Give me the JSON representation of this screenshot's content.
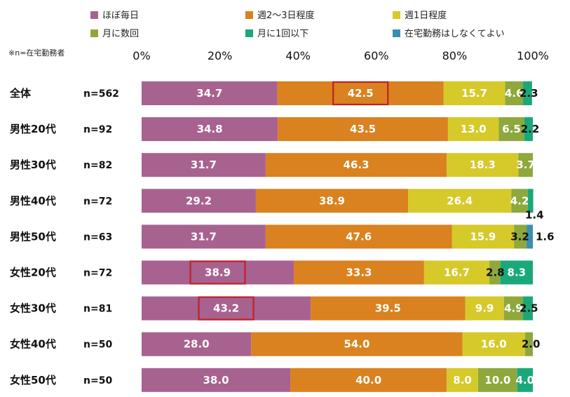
{
  "chart_data": {
    "type": "bar",
    "orientation": "horizontal",
    "stacked": true,
    "note": "※n=在宅勤務者",
    "x_ticks": [
      "0%",
      "20%",
      "40%",
      "60%",
      "80%",
      "100%"
    ],
    "xlim": [
      0,
      100
    ],
    "legend_position": "top",
    "categories": [
      "全体",
      "男性20代",
      "男性30代",
      "男性40代",
      "男性50代",
      "女性20代",
      "女性30代",
      "女性40代",
      "女性50代"
    ],
    "n_labels": [
      "n=562",
      "n=92",
      "n=82",
      "n=72",
      "n=63",
      "n=72",
      "n=81",
      "n=50",
      "n=50"
    ],
    "series": [
      {
        "name": "ほぼ毎日",
        "color": "#a8628f",
        "values": [
          34.7,
          34.8,
          31.7,
          29.2,
          31.7,
          38.9,
          43.2,
          28.0,
          38.0
        ]
      },
      {
        "name": "週2～3日程度",
        "color": "#d9821f",
        "values": [
          42.5,
          43.5,
          46.3,
          38.9,
          47.6,
          33.3,
          39.5,
          54.0,
          40.0
        ]
      },
      {
        "name": "週1日程度",
        "color": "#d6c92a",
        "values": [
          15.7,
          13.0,
          18.3,
          26.4,
          15.9,
          16.7,
          9.9,
          16.0,
          8.0
        ]
      },
      {
        "name": "月に数回",
        "color": "#8ea83c",
        "values": [
          4.6,
          6.5,
          3.7,
          4.2,
          3.2,
          2.8,
          4.9,
          2.0,
          10.0
        ]
      },
      {
        "name": "月に1回以下",
        "color": "#1aa87b",
        "values": [
          2.3,
          2.2,
          0,
          1.4,
          0,
          8.3,
          2.5,
          0,
          4.0
        ]
      },
      {
        "name": "在宅勤務はしなくてよい",
        "color": "#3a8fb0",
        "values": [
          0,
          0,
          0,
          0,
          1.6,
          0,
          0,
          0,
          0
        ]
      }
    ],
    "labels": [
      [
        "34.7",
        "42.5",
        "15.7",
        "4.6",
        "2.3",
        ""
      ],
      [
        "34.8",
        "43.5",
        "13.0",
        "6.5",
        "2.2",
        ""
      ],
      [
        "31.7",
        "46.3",
        "18.3",
        "3.7",
        "",
        ""
      ],
      [
        "29.2",
        "38.9",
        "26.4",
        "4.2",
        "1.4",
        ""
      ],
      [
        "31.7",
        "47.6",
        "15.9",
        "3.2",
        "",
        "1.6"
      ],
      [
        "38.9",
        "33.3",
        "16.7",
        "2.8",
        "8.3",
        ""
      ],
      [
        "43.2",
        "39.5",
        "9.9",
        "4.9",
        "2.5",
        ""
      ],
      [
        "28.0",
        "54.0",
        "16.0",
        "2.0",
        "",
        ""
      ],
      [
        "38.0",
        "40.0",
        "8.0",
        "10.0",
        "4.0",
        ""
      ]
    ],
    "highlights": [
      {
        "row": 0,
        "series": 1
      },
      {
        "row": 5,
        "series": 0
      },
      {
        "row": 6,
        "series": 0
      }
    ],
    "highlight_color": "#c0202a"
  }
}
